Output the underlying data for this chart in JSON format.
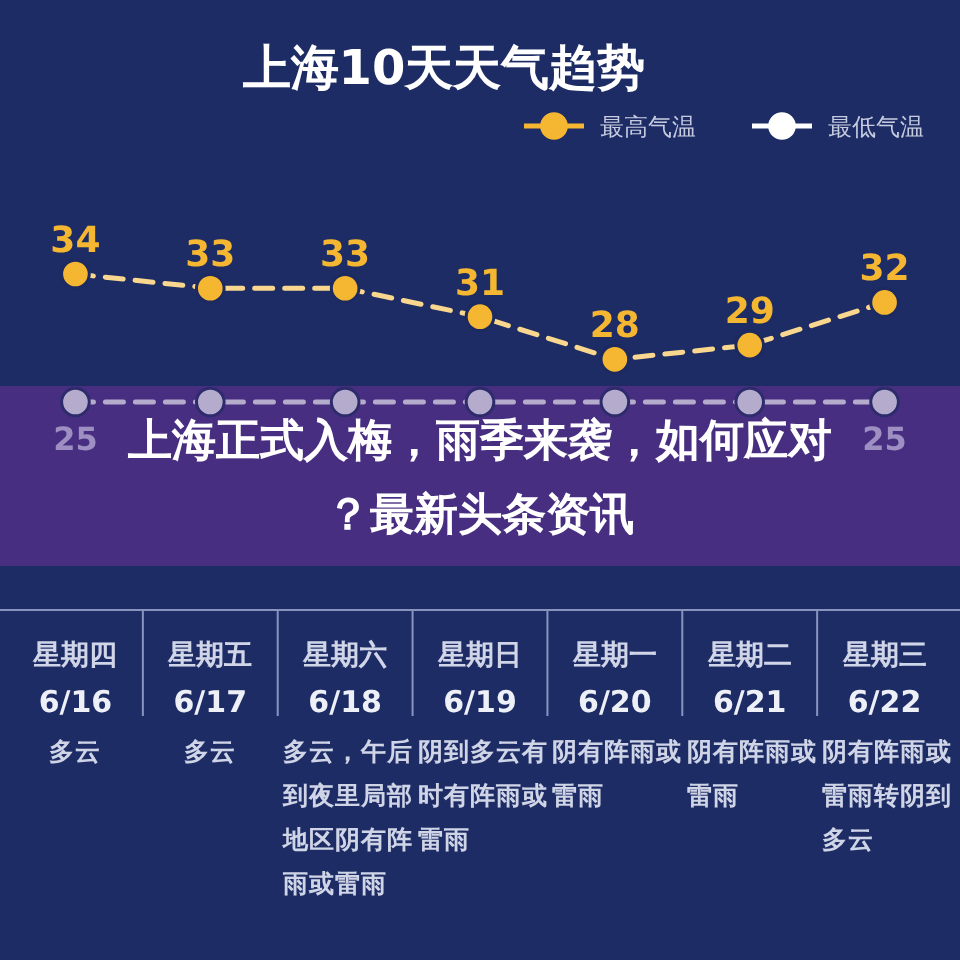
{
  "chart_data": {
    "type": "line",
    "title": "上海10天天气趋势",
    "categories": [
      "星期四\n6/16\n多云",
      "星期五\n6/17\n多云",
      "星期六\n6/18\n多云，午后到夜里局部地区阴有阵雨或雷雨",
      "星期日\n6/19\n阴到多云有时有阵雨或雷雨",
      "星期一\n6/20\n阴有阵雨或雷雨",
      "星期二\n6/21\n阴有阵雨或雷雨",
      "星期三\n6/22\n阴有阵雨或雷雨转阴到多云"
    ],
    "series": [
      {
        "name": "最高气温",
        "color": "#f5b731",
        "values": [
          34,
          33,
          33,
          31,
          28,
          29,
          32
        ],
        "value_labels": [
          "34",
          "33",
          "33",
          "31",
          "28",
          "29",
          "32"
        ]
      },
      {
        "name": "最低气温",
        "color": "#ffffff",
        "values": [
          25,
          25,
          25,
          25,
          25,
          25,
          25
        ],
        "value_labels": [
          "25",
          null,
          null,
          null,
          null,
          null,
          "25"
        ]
      }
    ],
    "legend": "top right",
    "marker": "circle",
    "line_style": "dashed",
    "annotations": [
      "上海正式入梅，雨季来袭，如何应对？最新头条资讯"
    ]
  }
}
